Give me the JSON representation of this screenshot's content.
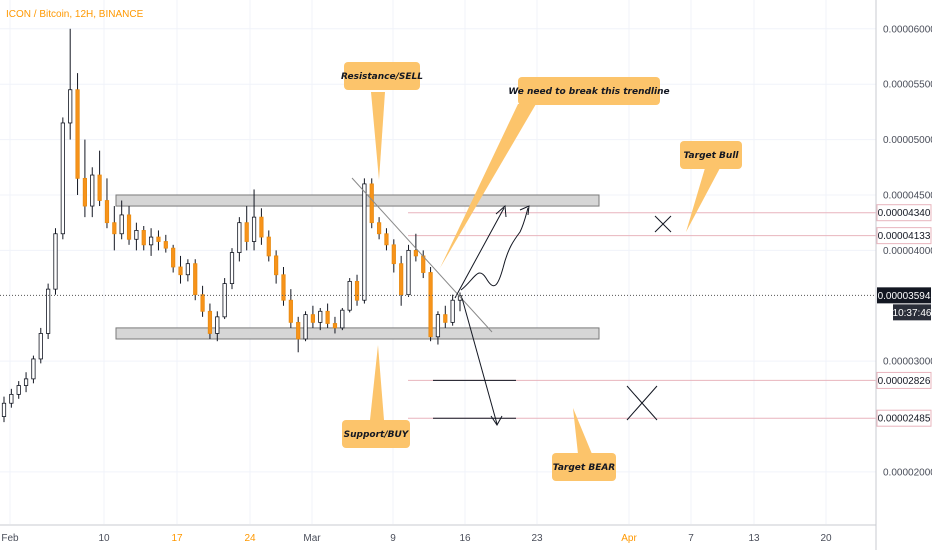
{
  "header": {
    "symbol_line": "ICON / Bitcoin, 12H, BINANCE"
  },
  "axis": {
    "x_ticks": [
      {
        "label": "Feb",
        "orange": false
      },
      {
        "label": "10",
        "orange": false
      },
      {
        "label": "17",
        "orange": true
      },
      {
        "label": "24",
        "orange": true
      },
      {
        "label": "Mar",
        "orange": false
      },
      {
        "label": "9",
        "orange": false
      },
      {
        "label": "16",
        "orange": false
      },
      {
        "label": "23",
        "orange": false
      },
      {
        "label": "Apr",
        "orange": true
      },
      {
        "label": "7",
        "orange": false
      },
      {
        "label": "13",
        "orange": false
      },
      {
        "label": "20",
        "orange": false
      }
    ],
    "y_ticks": [
      "0.00006000",
      "0.00005500",
      "0.00005000",
      "0.00004500",
      "0.00004000",
      "0.00003000",
      "0.00002000"
    ]
  },
  "price_tags": [
    {
      "label": "0.00004340",
      "value": 4.34e-05
    },
    {
      "label": "0.00004133",
      "value": 4.133e-05
    },
    {
      "label": "0.00002826",
      "value": 2.826e-05
    },
    {
      "label": "0.00002485",
      "value": 2.485e-05
    }
  ],
  "current_price": {
    "label": "0.00003594",
    "value": 3.594e-05,
    "countdown": "10:37:46"
  },
  "callouts": {
    "resistance": "Resistance/SELL",
    "support": "Support/BUY",
    "trendline": "We need to break this trendline",
    "target_bull": "Target Bull",
    "target_bear": "Target BEAR"
  },
  "colors": {
    "up": "#ffffff",
    "down": "#f7931a",
    "callout": "#fcc46b",
    "target_line": "#e8b4bd",
    "zone": "#d6d6d6"
  },
  "chart_data": {
    "type": "candlestick",
    "title": "ICON / Bitcoin, 12H, BINANCE",
    "ylim": [
      1.53e-05,
      6.26e-05
    ],
    "y_log_scale": false,
    "grid": true,
    "ohlc": [
      [
        2.5e-05,
        2.68e-05,
        2.45e-05,
        2.62e-05
      ],
      [
        2.62e-05,
        2.75e-05,
        2.58e-05,
        2.7e-05
      ],
      [
        2.7e-05,
        2.82e-05,
        2.66e-05,
        2.78e-05
      ],
      [
        2.78e-05,
        2.9e-05,
        2.72e-05,
        2.84e-05
      ],
      [
        2.84e-05,
        3.05e-05,
        2.8e-05,
        3.02e-05
      ],
      [
        3.02e-05,
        3.3e-05,
        2.98e-05,
        3.25e-05
      ],
      [
        3.25e-05,
        3.7e-05,
        3.2e-05,
        3.65e-05
      ],
      [
        3.65e-05,
        4.2e-05,
        3.6e-05,
        4.15e-05
      ],
      [
        4.15e-05,
        5.2e-05,
        4.1e-05,
        5.15e-05
      ],
      [
        5.15e-05,
        6e-05,
        5e-05,
        5.45e-05
      ],
      [
        5.45e-05,
        5.6e-05,
        4.5e-05,
        4.65e-05
      ],
      [
        4.65e-05,
        5e-05,
        4.3e-05,
        4.4e-05
      ],
      [
        4.4e-05,
        4.75e-05,
        4.3e-05,
        4.68e-05
      ],
      [
        4.68e-05,
        4.9e-05,
        4.4e-05,
        4.45e-05
      ],
      [
        4.45e-05,
        4.65e-05,
        4.2e-05,
        4.25e-05
      ],
      [
        4.25e-05,
        4.4e-05,
        4e-05,
        4.15e-05
      ],
      [
        4.15e-05,
        4.45e-05,
        4.1e-05,
        4.32e-05
      ],
      [
        4.32e-05,
        4.4e-05,
        4.05e-05,
        4.1e-05
      ],
      [
        4.1e-05,
        4.25e-05,
        4e-05,
        4.18e-05
      ],
      [
        4.18e-05,
        4.22e-05,
        4e-05,
        4.05e-05
      ],
      [
        4.05e-05,
        4.2e-05,
        3.95e-05,
        4.12e-05
      ],
      [
        4.12e-05,
        4.18e-05,
        4e-05,
        4.08e-05
      ],
      [
        4.08e-05,
        4.14e-05,
        3.98e-05,
        4.02e-05
      ],
      [
        4.02e-05,
        4.05e-05,
        3.8e-05,
        3.85e-05
      ],
      [
        3.85e-05,
        3.95e-05,
        3.7e-05,
        3.78e-05
      ],
      [
        3.78e-05,
        3.92e-05,
        3.72e-05,
        3.88e-05
      ],
      [
        3.88e-05,
        3.92e-05,
        3.55e-05,
        3.6e-05
      ],
      [
        3.6e-05,
        3.68e-05,
        3.4e-05,
        3.45e-05
      ],
      [
        3.45e-05,
        3.52e-05,
        3.2e-05,
        3.25e-05
      ],
      [
        3.25e-05,
        3.45e-05,
        3.18e-05,
        3.4e-05
      ],
      [
        3.4e-05,
        3.75e-05,
        3.38e-05,
        3.7e-05
      ],
      [
        3.7e-05,
        4.02e-05,
        3.65e-05,
        3.98e-05
      ],
      [
        3.98e-05,
        4.3e-05,
        3.9e-05,
        4.25e-05
      ],
      [
        4.25e-05,
        4.4e-05,
        4e-05,
        4.08e-05
      ],
      [
        4.08e-05,
        4.55e-05,
        4e-05,
        4.3e-05
      ],
      [
        4.3e-05,
        4.38e-05,
        4.05e-05,
        4.12e-05
      ],
      [
        4.12e-05,
        4.18e-05,
        3.9e-05,
        3.95e-05
      ],
      [
        3.95e-05,
        4e-05,
        3.7e-05,
        3.78e-05
      ],
      [
        3.78e-05,
        3.85e-05,
        3.5e-05,
        3.55e-05
      ],
      [
        3.55e-05,
        3.65e-05,
        3.3e-05,
        3.35e-05
      ],
      [
        3.35e-05,
        3.4e-05,
        3.08e-05,
        3.2e-05
      ],
      [
        3.2e-05,
        3.45e-05,
        3.18e-05,
        3.42e-05
      ],
      [
        3.42e-05,
        3.5e-05,
        3.3e-05,
        3.35e-05
      ],
      [
        3.35e-05,
        3.48e-05,
        3.28e-05,
        3.45e-05
      ],
      [
        3.45e-05,
        3.52e-05,
        3.3e-05,
        3.34e-05
      ],
      [
        3.34e-05,
        3.4e-05,
        3.25e-05,
        3.3e-05
      ],
      [
        3.3e-05,
        3.48e-05,
        3.28e-05,
        3.46e-05
      ],
      [
        3.46e-05,
        3.75e-05,
        3.44e-05,
        3.72e-05
      ],
      [
        3.72e-05,
        3.78e-05,
        3.5e-05,
        3.55e-05
      ],
      [
        3.55e-05,
        4.65e-05,
        3.52e-05,
        4.6e-05
      ],
      [
        4.6e-05,
        4.65e-05,
        4.2e-05,
        4.25e-05
      ],
      [
        4.25e-05,
        4.3e-05,
        4.1e-05,
        4.15e-05
      ],
      [
        4.15e-05,
        4.2e-05,
        4e-05,
        4.05e-05
      ],
      [
        4.05e-05,
        4.1e-05,
        3.8e-05,
        3.88e-05
      ],
      [
        3.88e-05,
        3.95e-05,
        3.5e-05,
        3.6e-05
      ],
      [
        3.6e-05,
        4.05e-05,
        3.58e-05,
        4e-05
      ],
      [
        4e-05,
        4.15e-05,
        3.9e-05,
        3.95e-05
      ],
      [
        3.95e-05,
        4e-05,
        3.75e-05,
        3.8e-05
      ],
      [
        3.8e-05,
        3.85e-05,
        3.18e-05,
        3.22e-05
      ],
      [
        3.22e-05,
        3.45e-05,
        3.15e-05,
        3.42e-05
      ],
      [
        3.42e-05,
        3.5e-05,
        3.3e-05,
        3.35e-05
      ],
      [
        3.35e-05,
        3.6e-05,
        3.32e-05,
        3.55e-05
      ],
      [
        3.55e-05,
        3.62e-05,
        3.45e-05,
        3.59e-05
      ]
    ],
    "resistance_zone": [
      4.4e-05,
      4.5e-05
    ],
    "support_zone": [
      3.2e-05,
      3.3e-05
    ]
  }
}
